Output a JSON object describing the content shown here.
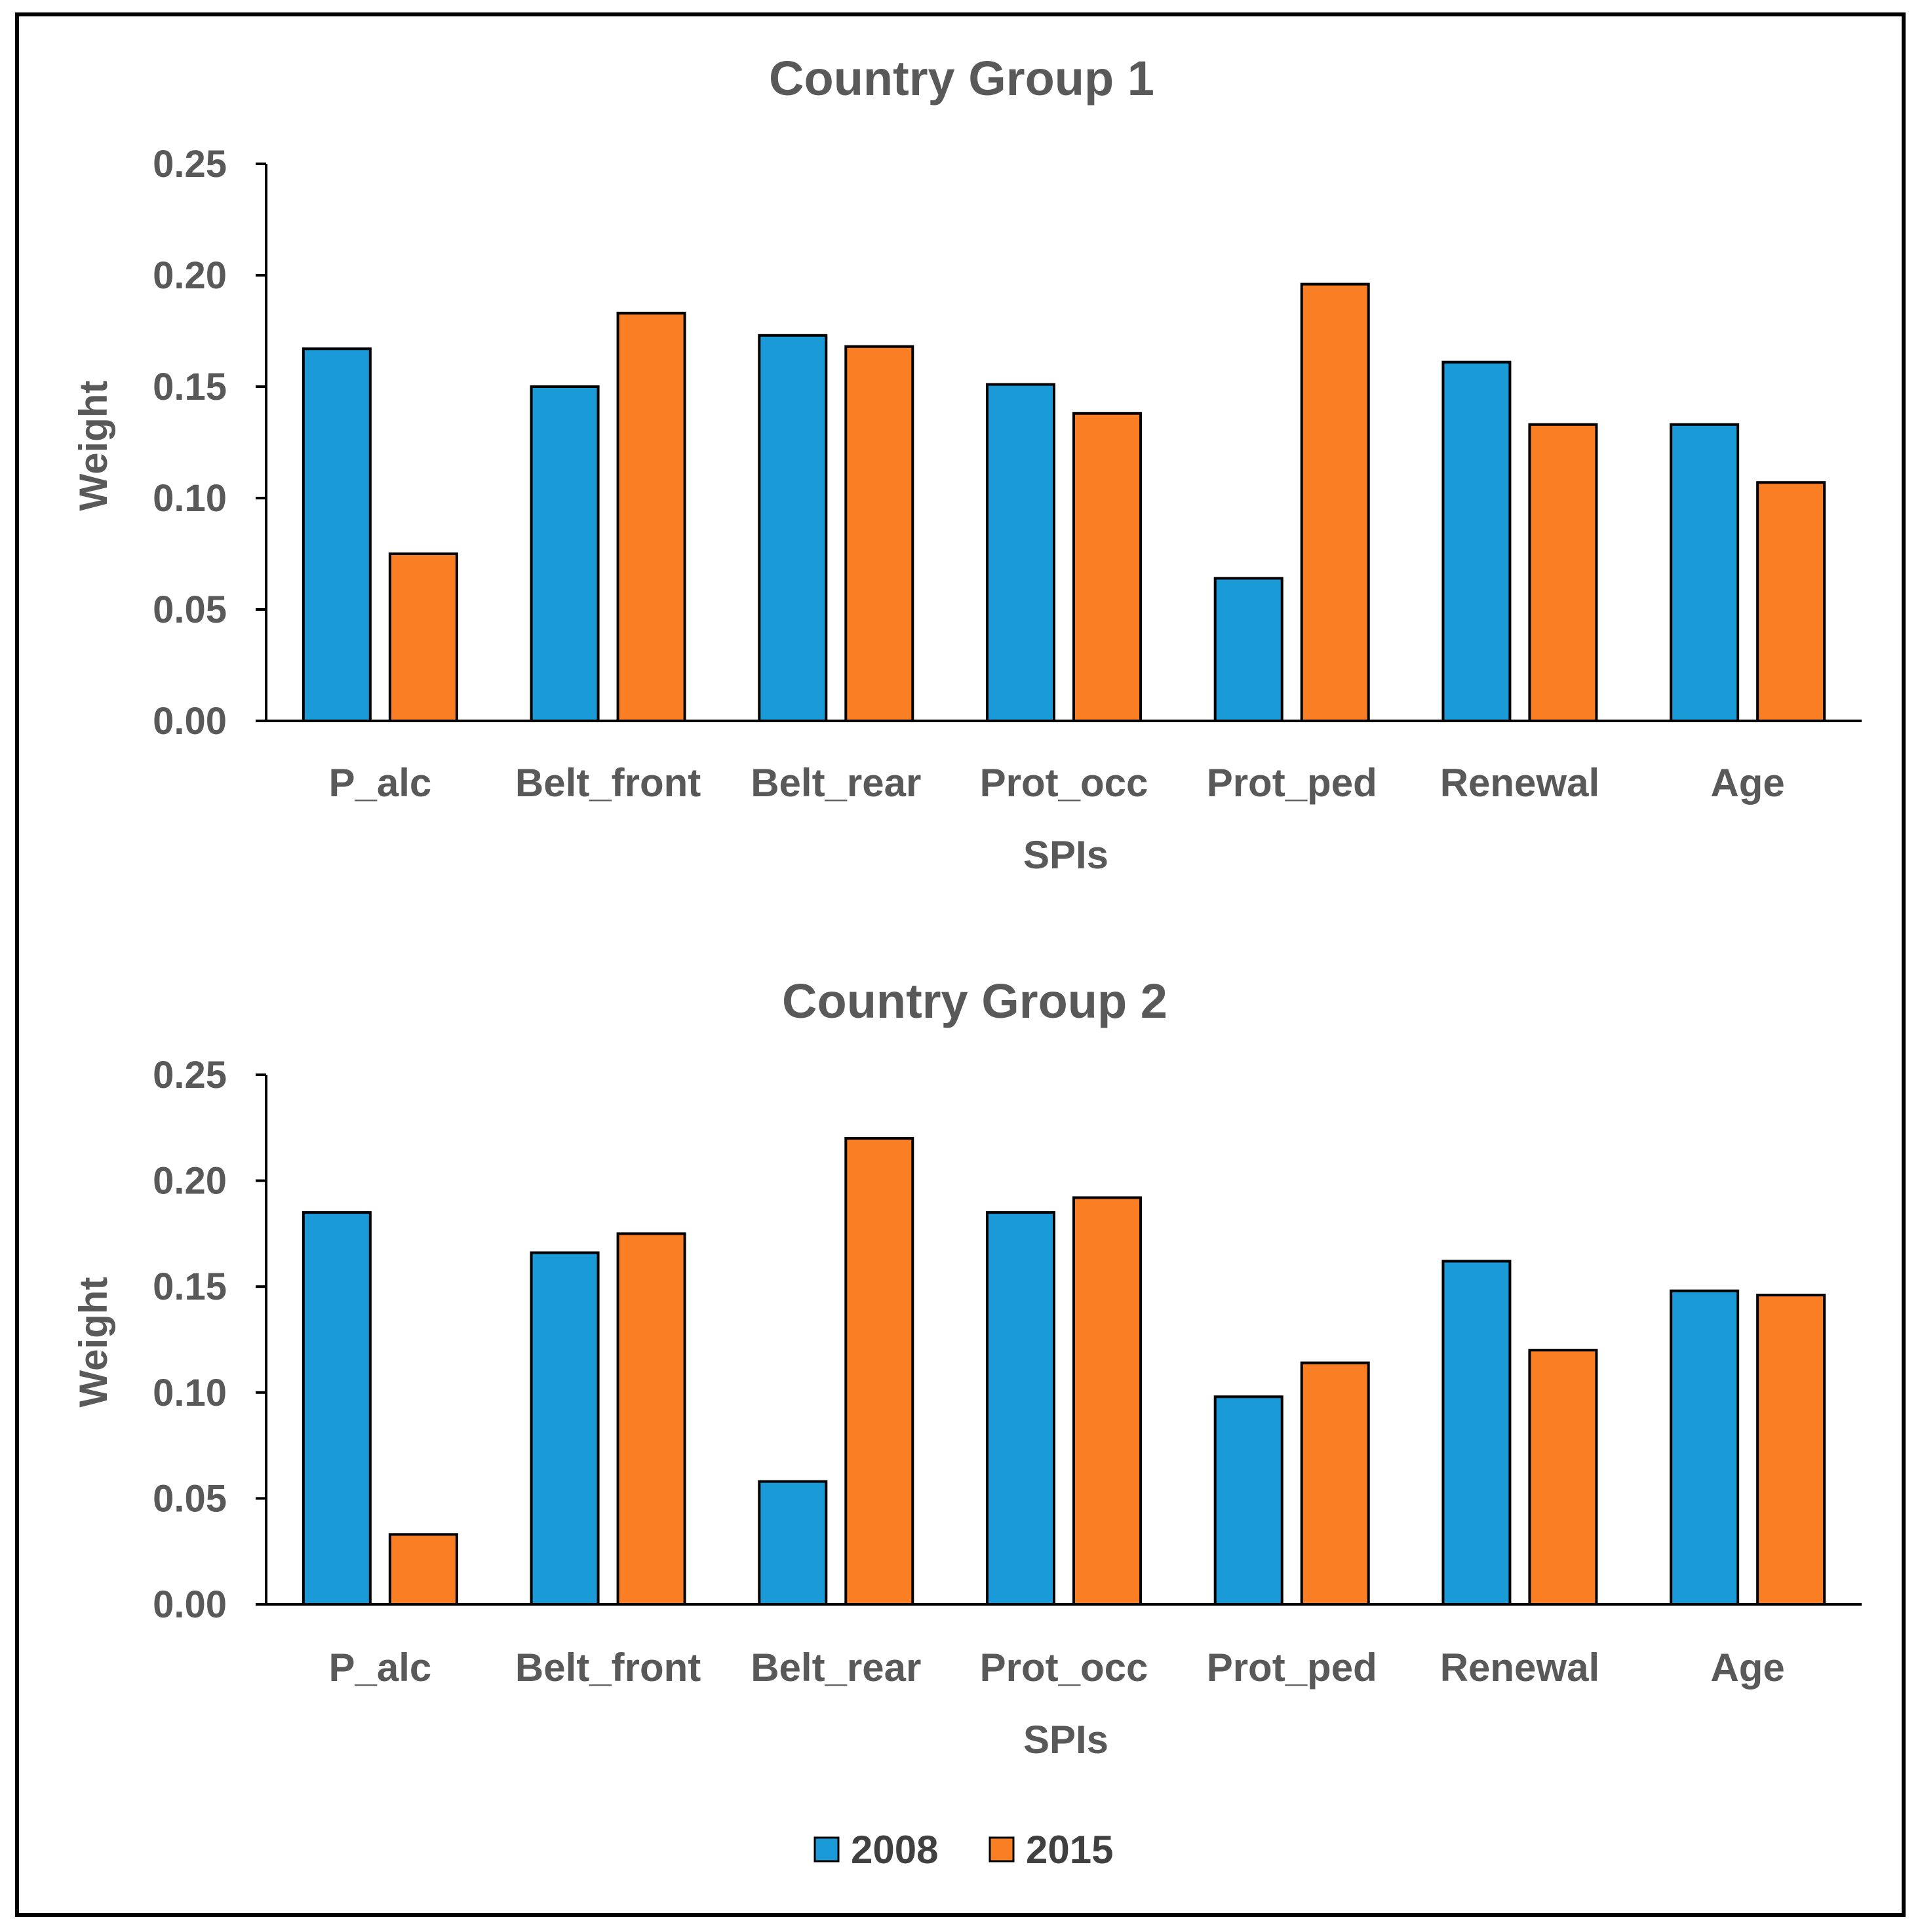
{
  "chart_data": [
    {
      "type": "bar",
      "title": "Country Group 1",
      "xlabel": "SPIs",
      "ylabel": "Weight",
      "ylim": [
        0,
        0.25
      ],
      "ytick_labels": [
        "0.00",
        "0.05",
        "0.10",
        "0.15",
        "0.20",
        "0.25"
      ],
      "categories": [
        "P_alc",
        "Belt_front",
        "Belt_rear",
        "Prot_occ",
        "Prot_ped",
        "Renewal",
        "Age"
      ],
      "series": [
        {
          "name": "2008",
          "values": [
            0.167,
            0.15,
            0.173,
            0.151,
            0.064,
            0.161,
            0.133
          ]
        },
        {
          "name": "2015",
          "values": [
            0.075,
            0.183,
            0.168,
            0.138,
            0.196,
            0.133,
            0.107
          ]
        }
      ],
      "grid": false
    },
    {
      "type": "bar",
      "title": "Country Group 2",
      "xlabel": "SPIs",
      "ylabel": "Weight",
      "ylim": [
        0,
        0.25
      ],
      "ytick_labels": [
        "0.00",
        "0.05",
        "0.10",
        "0.15",
        "0.20",
        "0.25"
      ],
      "categories": [
        "P_alc",
        "Belt_front",
        "Belt_rear",
        "Prot_occ",
        "Prot_ped",
        "Renewal",
        "Age"
      ],
      "series": [
        {
          "name": "2008",
          "values": [
            0.185,
            0.166,
            0.058,
            0.185,
            0.098,
            0.162,
            0.148
          ]
        },
        {
          "name": "2015",
          "values": [
            0.033,
            0.175,
            0.22,
            0.192,
            0.114,
            0.12,
            0.146
          ]
        }
      ],
      "grid": false
    }
  ],
  "legend": {
    "position": "bottom-center",
    "items": [
      {
        "label": "2008",
        "color": "#1A9BD7"
      },
      {
        "label": "2015",
        "color": "#FA7F24"
      }
    ]
  },
  "colors": {
    "series_2008": "#1A9BD7",
    "series_2015": "#FA7F24",
    "bar_outline": "#000000",
    "text": "#595959"
  }
}
